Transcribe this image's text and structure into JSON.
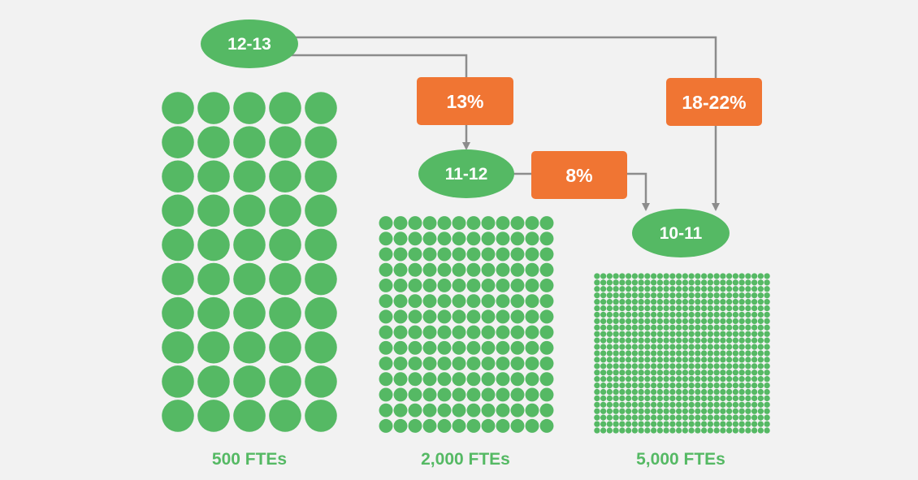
{
  "colors": {
    "green": "#55b964",
    "orange": "#f07533",
    "connector": "#8c8c8c",
    "background": "#f2f2f2",
    "text_white": "#ffffff"
  },
  "nodes": {
    "start": "12-13",
    "mid": "11-12",
    "end": "10-11"
  },
  "reductions": {
    "first_step": "13%",
    "second_step": "8%",
    "overall": "18-22%"
  },
  "groups": [
    {
      "label": "500 FTEs",
      "columns": 5,
      "rows": 10
    },
    {
      "label": "2,000 FTEs",
      "columns": 12,
      "rows": 14
    },
    {
      "label": "5,000 FTEs",
      "columns": 28,
      "rows": 25
    }
  ]
}
